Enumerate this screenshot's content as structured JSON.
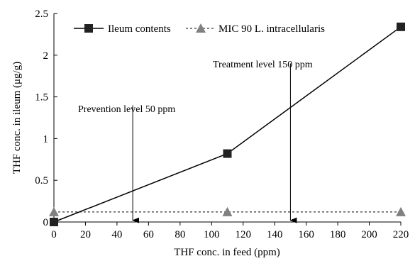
{
  "chart_data": {
    "type": "line",
    "title": "",
    "xlabel": "THF conc. in feed (ppm)",
    "ylabel": "THF conc. in ileum (μg/g)",
    "xlim": [
      0,
      220
    ],
    "ylim": [
      0,
      2.5
    ],
    "x_ticks": [
      "0",
      "20",
      "40",
      "60",
      "80",
      "100",
      "120",
      "140",
      "160",
      "180",
      "200",
      "220"
    ],
    "y_ticks": [
      "0",
      "0.5",
      "1",
      "1.5",
      "2",
      "2.5"
    ],
    "grid": false,
    "legend_position": "top-left",
    "series": [
      {
        "name": "Ileum contents",
        "line": "solid",
        "marker": "square",
        "color": "#000000",
        "marker_color": "#222222",
        "x": [
          0,
          110,
          220
        ],
        "y": [
          0,
          0.82,
          2.34
        ]
      },
      {
        "name": "MIC 90 L. intracellularis",
        "line": "dashed",
        "marker": "triangle",
        "color": "#000000",
        "marker_color": "#808080",
        "x": [
          0,
          110,
          220
        ],
        "y": [
          0.12,
          0.12,
          0.12
        ]
      }
    ],
    "annotations": [
      {
        "text": "Prevention level 50 ppm",
        "x": 50,
        "y_from": 1.4,
        "y_to": 0.02
      },
      {
        "text": "Treatment level 150 ppm",
        "x": 150,
        "y_from": 1.9,
        "y_to": 0.02
      }
    ]
  }
}
